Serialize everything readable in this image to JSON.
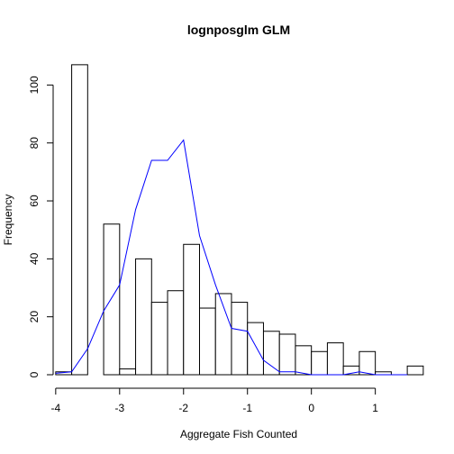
{
  "chart_data": {
    "type": "bar",
    "title": "lognposglm GLM",
    "xlabel": "Aggregate Fish Counted",
    "ylabel": "Frequency",
    "xlim": [
      -4.04,
      1.78
    ],
    "ylim": [
      0,
      111
    ],
    "x_ticks": [
      -4,
      -3,
      -2,
      -1,
      0,
      1
    ],
    "x_tick_labels": [
      "-4",
      "-3",
      "-2",
      "-1",
      "0",
      "1"
    ],
    "y_ticks": [
      0,
      20,
      40,
      60,
      80,
      100
    ],
    "y_tick_labels": [
      "0",
      "20",
      "40",
      "60",
      "80",
      "100"
    ],
    "histogram": {
      "bin_edges": [
        -4.0,
        -3.75,
        -3.5,
        -3.25,
        -3.0,
        -2.75,
        -2.5,
        -2.25,
        -2.0,
        -1.75,
        -1.5,
        -1.25,
        -1.0,
        -0.75,
        -0.5,
        -0.25,
        0.0,
        0.25,
        0.5,
        0.75,
        1.0,
        1.25,
        1.5,
        1.75
      ],
      "counts": [
        1,
        107,
        0,
        52,
        2,
        40,
        25,
        29,
        45,
        23,
        28,
        25,
        18,
        15,
        14,
        10,
        8,
        11,
        3,
        8,
        1,
        0,
        3
      ],
      "fill": "#ffffff",
      "stroke": "#000000"
    },
    "series": [
      {
        "x": [
          -4.0,
          -3.75,
          -3.5,
          -3.25,
          -3.0,
          -2.75,
          -2.5,
          -2.25,
          -2.0,
          -1.75,
          -1.5,
          -1.25,
          -1.0,
          -0.75,
          -0.5,
          -0.25,
          0.0,
          0.25,
          0.5,
          0.75,
          1.0,
          1.25,
          1.5
        ],
        "y": [
          0.5,
          1,
          9,
          22,
          31,
          57,
          74,
          74,
          81,
          48,
          31,
          16,
          15,
          5,
          1,
          1,
          0,
          0,
          0,
          1,
          0,
          0,
          0
        ],
        "color": "#0000ff"
      }
    ]
  }
}
